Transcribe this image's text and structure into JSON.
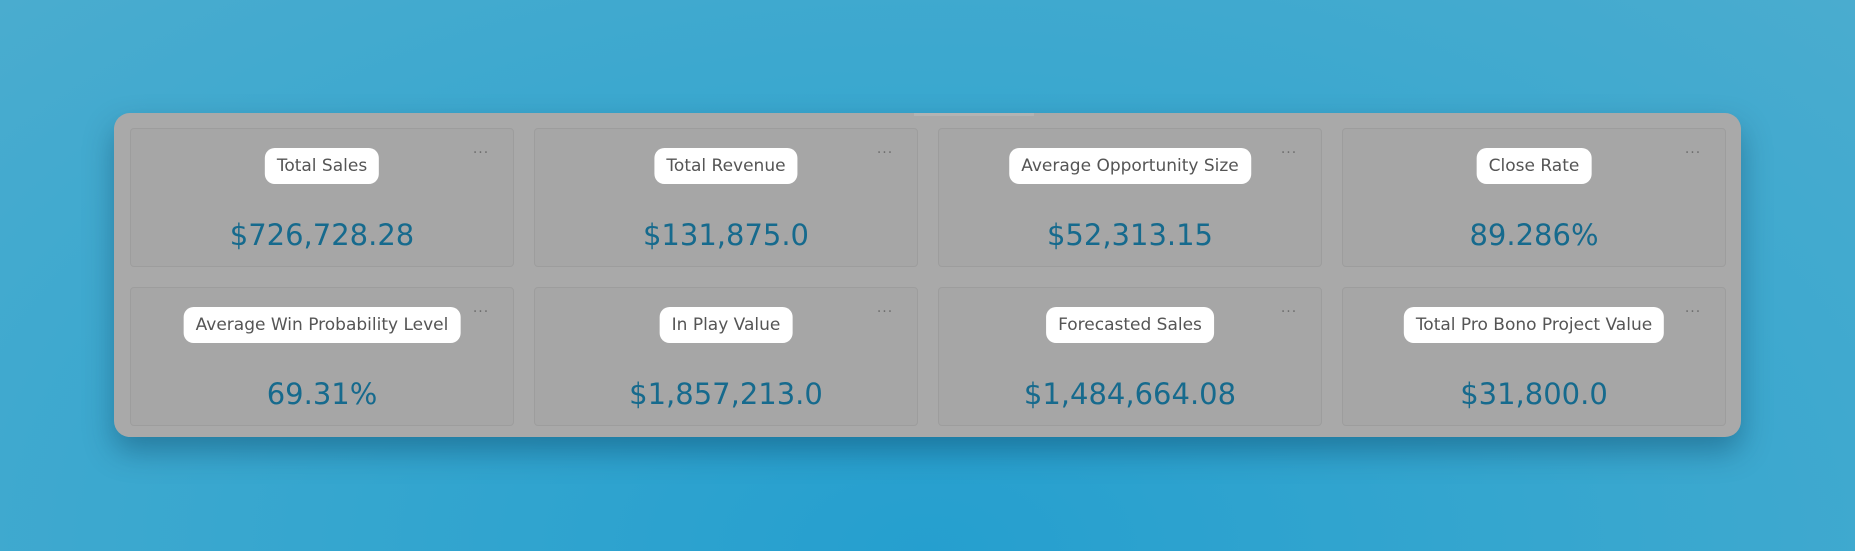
{
  "dashboard": {
    "cards": [
      {
        "title": "Total Sales",
        "value": "$726,728.28",
        "menu_icon": "more-horizontal-icon",
        "menu_label": "···"
      },
      {
        "title": "Total Revenue",
        "value": "$131,875.0",
        "menu_icon": "more-horizontal-icon",
        "menu_label": "···"
      },
      {
        "title": "Average Opportunity Size",
        "value": "$52,313.15",
        "menu_icon": "more-horizontal-icon",
        "menu_label": "···"
      },
      {
        "title": "Close Rate",
        "value": "89.286%",
        "menu_icon": "more-horizontal-icon",
        "menu_label": "···"
      },
      {
        "title": "Average Win Probability Level",
        "value": "69.31%",
        "menu_icon": "more-horizontal-icon",
        "menu_label": "···"
      },
      {
        "title": "In Play Value",
        "value": "$1,857,213.0",
        "menu_icon": "more-horizontal-icon",
        "menu_label": "···"
      },
      {
        "title": "Forecasted Sales",
        "value": "$1,484,664.08",
        "menu_icon": "more-horizontal-icon",
        "menu_label": "···"
      },
      {
        "title": "Total Pro Bono Project Value",
        "value": "$31,800.0",
        "menu_icon": "more-horizontal-icon",
        "menu_label": "···"
      }
    ]
  },
  "colors": {
    "background": "#35a6cf",
    "panel": "#a9a9a9",
    "title_badge": "#ffffff",
    "value_text": "#166a8d"
  }
}
